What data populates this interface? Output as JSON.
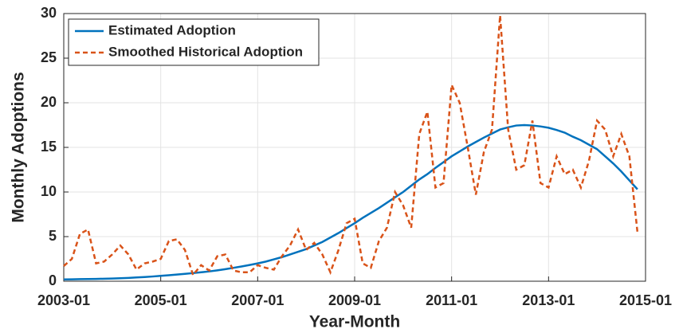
{
  "chart_data": {
    "type": "line",
    "xlabel": "Year-Month",
    "ylabel": "Monthly Adoptions",
    "x": [
      "2003-01",
      "2003-03",
      "2003-05",
      "2003-07",
      "2003-09",
      "2003-11",
      "2004-01",
      "2004-03",
      "2004-05",
      "2004-07",
      "2004-09",
      "2004-11",
      "2005-01",
      "2005-03",
      "2005-05",
      "2005-07",
      "2005-09",
      "2005-11",
      "2006-01",
      "2006-03",
      "2006-05",
      "2006-07",
      "2006-09",
      "2006-11",
      "2007-01",
      "2007-03",
      "2007-05",
      "2007-07",
      "2007-09",
      "2007-11",
      "2008-01",
      "2008-03",
      "2008-05",
      "2008-07",
      "2008-09",
      "2008-11",
      "2009-01",
      "2009-03",
      "2009-05",
      "2009-07",
      "2009-09",
      "2009-11",
      "2010-01",
      "2010-03",
      "2010-05",
      "2010-07",
      "2010-09",
      "2010-11",
      "2011-01",
      "2011-03",
      "2011-05",
      "2011-07",
      "2011-09",
      "2011-11",
      "2012-01",
      "2012-03",
      "2012-05",
      "2012-07",
      "2012-09",
      "2012-11",
      "2013-01",
      "2013-03",
      "2013-05",
      "2013-07",
      "2013-09",
      "2013-11",
      "2014-01",
      "2014-03",
      "2014-05",
      "2014-07",
      "2014-09",
      "2014-11"
    ],
    "series": [
      {
        "name": "Estimated Adoption",
        "color": "#0072bd",
        "dash": false,
        "values": [
          0.2,
          0.21,
          0.23,
          0.24,
          0.26,
          0.28,
          0.3,
          0.33,
          0.37,
          0.42,
          0.47,
          0.53,
          0.6,
          0.67,
          0.75,
          0.83,
          0.91,
          1.0,
          1.1,
          1.22,
          1.35,
          1.5,
          1.65,
          1.82,
          2.0,
          2.2,
          2.45,
          2.7,
          3.0,
          3.3,
          3.6,
          4.0,
          4.4,
          4.9,
          5.4,
          5.95,
          6.5,
          7.1,
          7.65,
          8.2,
          8.8,
          9.4,
          10.0,
          10.7,
          11.4,
          12.0,
          12.7,
          13.35,
          14.0,
          14.55,
          15.1,
          15.6,
          16.1,
          16.55,
          17.0,
          17.25,
          17.45,
          17.5,
          17.45,
          17.35,
          17.2,
          16.95,
          16.65,
          16.2,
          15.8,
          15.3,
          14.8,
          14.0,
          13.2,
          12.3,
          11.3,
          10.3
        ]
      },
      {
        "name": "Smoothed Historical Adoption",
        "color": "#d95319",
        "dash": true,
        "values": [
          1.7,
          2.5,
          5.3,
          5.8,
          2.0,
          2.2,
          3.0,
          4.0,
          3.0,
          1.3,
          2.0,
          2.2,
          2.5,
          4.5,
          4.7,
          3.5,
          0.7,
          1.8,
          1.2,
          2.8,
          3.0,
          1.2,
          1.0,
          1.0,
          1.8,
          1.5,
          1.3,
          2.8,
          4.0,
          5.8,
          3.5,
          4.3,
          3.0,
          1.0,
          3.5,
          6.5,
          7.0,
          2.0,
          1.5,
          4.5,
          6.0,
          10.0,
          8.5,
          6.0,
          16.5,
          19.0,
          10.5,
          11.0,
          22.0,
          20.0,
          15.0,
          9.7,
          14.5,
          17.0,
          29.8,
          17.0,
          12.5,
          13.0,
          18.0,
          11.0,
          10.5,
          14.0,
          12.0,
          12.5,
          10.5,
          13.5,
          18.0,
          17.0,
          14.0,
          16.5,
          14.0,
          5.5
        ]
      }
    ],
    "xlim": [
      "2003-01",
      "2015-01"
    ],
    "xticks": [
      "2003-01",
      "2005-01",
      "2007-01",
      "2009-01",
      "2011-01",
      "2013-01",
      "2015-01"
    ],
    "ylim": [
      0,
      30
    ],
    "yticks": [
      0,
      5,
      10,
      15,
      20,
      25,
      30
    ],
    "grid": true,
    "legend": "northwest"
  }
}
